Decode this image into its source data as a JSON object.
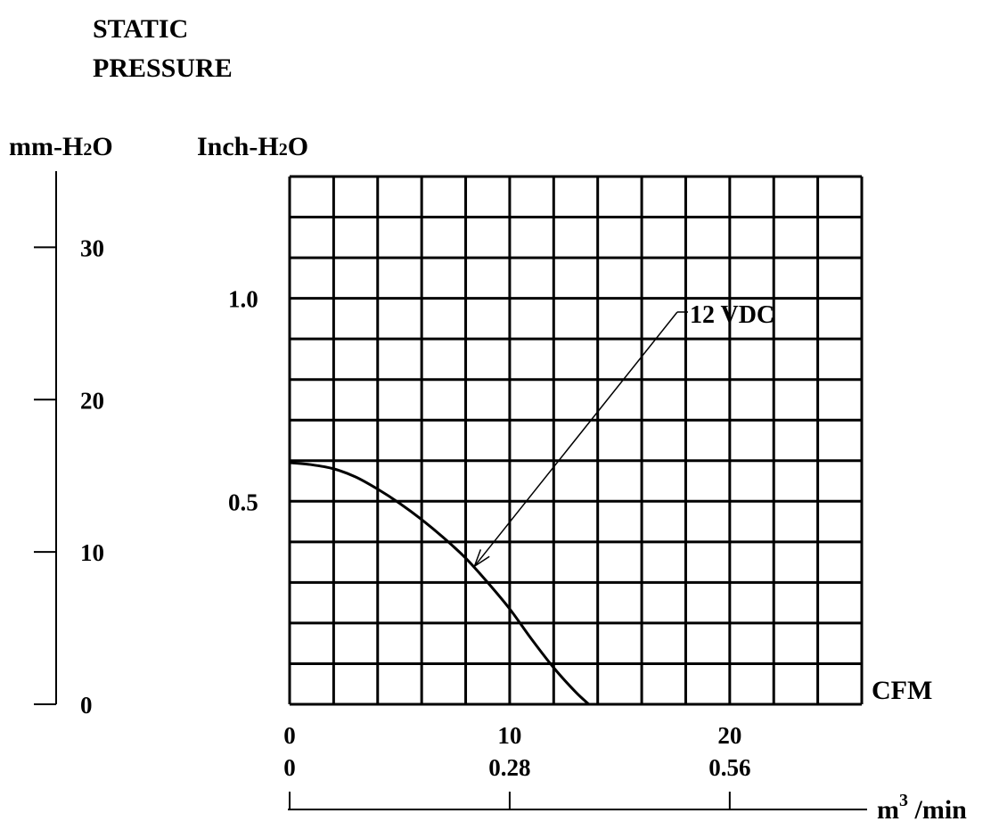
{
  "chart_data": {
    "type": "line",
    "title_lines": [
      "STATIC",
      "PRESSURE"
    ],
    "y_axes": {
      "left": {
        "unit_label": {
          "base": "mm-H",
          "sub": "2",
          "tail": "O"
        },
        "ticks": [
          0,
          10,
          20,
          30
        ],
        "range": [
          0,
          35
        ]
      },
      "inner": {
        "unit_label": {
          "base": "Inch-H",
          "sub": "2",
          "tail": "O"
        },
        "ticks": [
          "0.5",
          "1.0"
        ],
        "range": [
          0,
          1.3
        ]
      }
    },
    "x_axes": {
      "cfm": {
        "label": "CFM",
        "ticks": [
          "0",
          "10",
          "20"
        ],
        "range": [
          0,
          26
        ]
      },
      "metric": {
        "label": {
          "base": "m",
          "sup": "3",
          "tail": " /min"
        },
        "ticks": [
          "0",
          "0.28",
          "0.56"
        ]
      }
    },
    "grid": true,
    "grid_divisions": {
      "x": 13,
      "y": 13
    },
    "series": [
      {
        "name": "12 VDC",
        "x": [
          0,
          1,
          2,
          3,
          4,
          5,
          6,
          7,
          8,
          9,
          10,
          11,
          12,
          13,
          13.6
        ],
        "y": [
          0.595,
          0.59,
          0.58,
          0.56,
          0.53,
          0.495,
          0.455,
          0.41,
          0.36,
          0.3,
          0.235,
          0.16,
          0.09,
          0.03,
          0.0
        ]
      }
    ],
    "annotation": {
      "text": "12 VDC",
      "points_to": {
        "x": 8.4,
        "y": 0.34
      }
    }
  }
}
